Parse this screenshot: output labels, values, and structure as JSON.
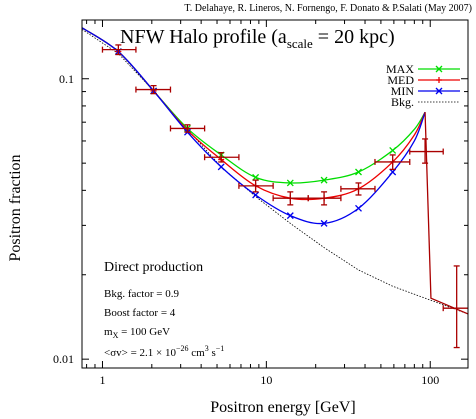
{
  "chart_data": {
    "type": "line",
    "credit": "T. Delahaye, R. Lineros, N. Fornengo, F. Donato & P.Salati (May 2007)",
    "title_main": "NFW Halo profile (a",
    "title_sub": "scale",
    "title_tail": " = 20 kpc)",
    "xlabel": "Positron energy [GeV]",
    "ylabel": "Positron fraction",
    "xscale": "log",
    "yscale": "log",
    "xlim": [
      0.75,
      170
    ],
    "ylim": [
      0.0093,
      0.162
    ],
    "x_ticks": [
      {
        "value": 1,
        "label": "1"
      },
      {
        "value": 10,
        "label": "10"
      },
      {
        "value": 100,
        "label": "100"
      }
    ],
    "y_ticks": [
      {
        "value": 0.01,
        "label": "0.01"
      },
      {
        "value": 0.1,
        "label": "0.1"
      }
    ],
    "legend_position": "top-right",
    "grid": false,
    "series": [
      {
        "name": "MAX",
        "color": "#00dd00",
        "marker": "x",
        "points": [
          [
            1.25,
            0.125
          ],
          [
            2.05,
            0.0905
          ],
          [
            3.3,
            0.0665
          ],
          [
            5.3,
            0.0535
          ],
          [
            8.6,
            0.0445
          ],
          [
            14,
            0.0425
          ],
          [
            22.5,
            0.0435
          ],
          [
            36.5,
            0.0465
          ],
          [
            59,
            0.0555
          ]
        ],
        "curve": [
          [
            0.75,
            0.152
          ],
          [
            1.25,
            0.125
          ],
          [
            2.05,
            0.0905
          ],
          [
            3.3,
            0.0665
          ],
          [
            5.3,
            0.0535
          ],
          [
            8.6,
            0.0445
          ],
          [
            14,
            0.0425
          ],
          [
            22.5,
            0.0435
          ],
          [
            36.5,
            0.0465
          ],
          [
            59,
            0.0555
          ],
          [
            80,
            0.066
          ],
          [
            93,
            0.076
          ]
        ]
      },
      {
        "name": "MED",
        "color": "#ee0000",
        "marker": "+",
        "points": [
          [
            1.25,
            0.125
          ],
          [
            2.05,
            0.0905
          ],
          [
            3.3,
            0.0655
          ],
          [
            5.3,
            0.0515
          ],
          [
            8.6,
            0.0415
          ],
          [
            14,
            0.0375
          ],
          [
            22.5,
            0.0375
          ],
          [
            36.5,
            0.0405
          ],
          [
            59,
            0.0505
          ]
        ],
        "curve": [
          [
            0.75,
            0.152
          ],
          [
            1.25,
            0.125
          ],
          [
            2.05,
            0.0905
          ],
          [
            3.3,
            0.0655
          ],
          [
            5.3,
            0.0515
          ],
          [
            8.6,
            0.0415
          ],
          [
            14,
            0.0375
          ],
          [
            22.5,
            0.0375
          ],
          [
            36.5,
            0.0405
          ],
          [
            59,
            0.0505
          ],
          [
            80,
            0.063
          ],
          [
            93,
            0.076
          ]
        ]
      },
      {
        "name": "MIN",
        "color": "#0000ee",
        "marker": "x",
        "points": [
          [
            1.25,
            0.125
          ],
          [
            2.05,
            0.0905
          ],
          [
            3.3,
            0.0645
          ],
          [
            5.3,
            0.0485
          ],
          [
            8.6,
            0.0385
          ],
          [
            14,
            0.0325
          ],
          [
            22.5,
            0.0305
          ],
          [
            36.5,
            0.0345
          ],
          [
            59,
            0.0465
          ]
        ],
        "curve": [
          [
            0.75,
            0.152
          ],
          [
            1.25,
            0.125
          ],
          [
            2.05,
            0.0905
          ],
          [
            3.3,
            0.0645
          ],
          [
            5.3,
            0.0485
          ],
          [
            8.6,
            0.0385
          ],
          [
            14,
            0.0325
          ],
          [
            22.5,
            0.0305
          ],
          [
            36.5,
            0.0345
          ],
          [
            59,
            0.0465
          ],
          [
            80,
            0.06
          ],
          [
            93,
            0.076
          ]
        ]
      },
      {
        "name": "Bkg.",
        "color": "#000000",
        "marker": "none",
        "dashed": true,
        "curve": [
          [
            0.75,
            0.15
          ],
          [
            1.25,
            0.123
          ],
          [
            2,
            0.092
          ],
          [
            3.3,
            0.066
          ],
          [
            5.3,
            0.0485
          ],
          [
            8.6,
            0.038
          ],
          [
            14,
            0.0305
          ],
          [
            22.5,
            0.025
          ],
          [
            36.5,
            0.0208
          ],
          [
            59,
            0.0182
          ],
          [
            93,
            0.0165
          ],
          [
            170,
            0.0145
          ]
        ]
      }
    ],
    "drop_curve": {
      "color": "#aa0000",
      "points": [
        [
          93,
          0.076
        ],
        [
          101,
          0.0165
        ],
        [
          170,
          0.0145
        ]
      ]
    },
    "data_points": {
      "color": "#aa0000",
      "points": [
        {
          "x": 1.25,
          "y": 0.127,
          "xerr": [
            1.0,
            1.6
          ],
          "yerr": [
            0.122,
            0.132
          ]
        },
        {
          "x": 2.05,
          "y": 0.0915,
          "xerr": [
            1.6,
            2.6
          ],
          "yerr": [
            0.0885,
            0.0945
          ]
        },
        {
          "x": 3.3,
          "y": 0.0665,
          "xerr": [
            2.6,
            4.2
          ],
          "yerr": [
            0.0645,
            0.0685
          ]
        },
        {
          "x": 5.3,
          "y": 0.0525,
          "xerr": [
            4.2,
            6.8
          ],
          "yerr": [
            0.0505,
            0.0545
          ]
        },
        {
          "x": 8.6,
          "y": 0.0415,
          "xerr": [
            6.8,
            11
          ],
          "yerr": [
            0.0395,
            0.0435
          ]
        },
        {
          "x": 14,
          "y": 0.0375,
          "xerr": [
            11,
            18
          ],
          "yerr": [
            0.0355,
            0.0395
          ]
        },
        {
          "x": 22.5,
          "y": 0.0375,
          "xerr": [
            18,
            28.5
          ],
          "yerr": [
            0.0355,
            0.0395
          ]
        },
        {
          "x": 36.5,
          "y": 0.0405,
          "xerr": [
            28.5,
            46
          ],
          "yerr": [
            0.0385,
            0.0425
          ]
        },
        {
          "x": 59,
          "y": 0.0505,
          "xerr": [
            46,
            75
          ],
          "yerr": [
            0.0475,
            0.0535
          ]
        },
        {
          "x": 93,
          "y": 0.055,
          "xerr": [
            75,
            120
          ],
          "yerr": [
            0.05,
            0.061
          ]
        },
        {
          "x": 145,
          "y": 0.0152,
          "xerr": [
            120,
            175
          ],
          "yerr": [
            0.011,
            0.0215
          ]
        }
      ]
    },
    "annotations": [
      {
        "main": "Direct production"
      },
      {
        "main": "Bkg. factor = 0.9"
      },
      {
        "main": "Boost factor = 4"
      },
      {
        "main": "m",
        "sub": "X",
        "tail": " = 100 GeV"
      },
      {
        "main": "<σv> = 2.1 × 10",
        "sup": "−26",
        "tail": " cm",
        "sup2": "3",
        "tail2": " s",
        "sup3": "−1"
      }
    ]
  }
}
